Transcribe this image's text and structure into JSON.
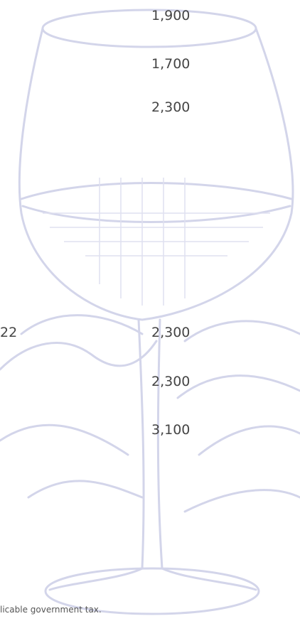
{
  "prices": [
    "1,900",
    "1,700",
    "2,300",
    "2,300",
    "2,300",
    "3,100"
  ],
  "left_fragment": "22",
  "footer": "licable government tax."
}
